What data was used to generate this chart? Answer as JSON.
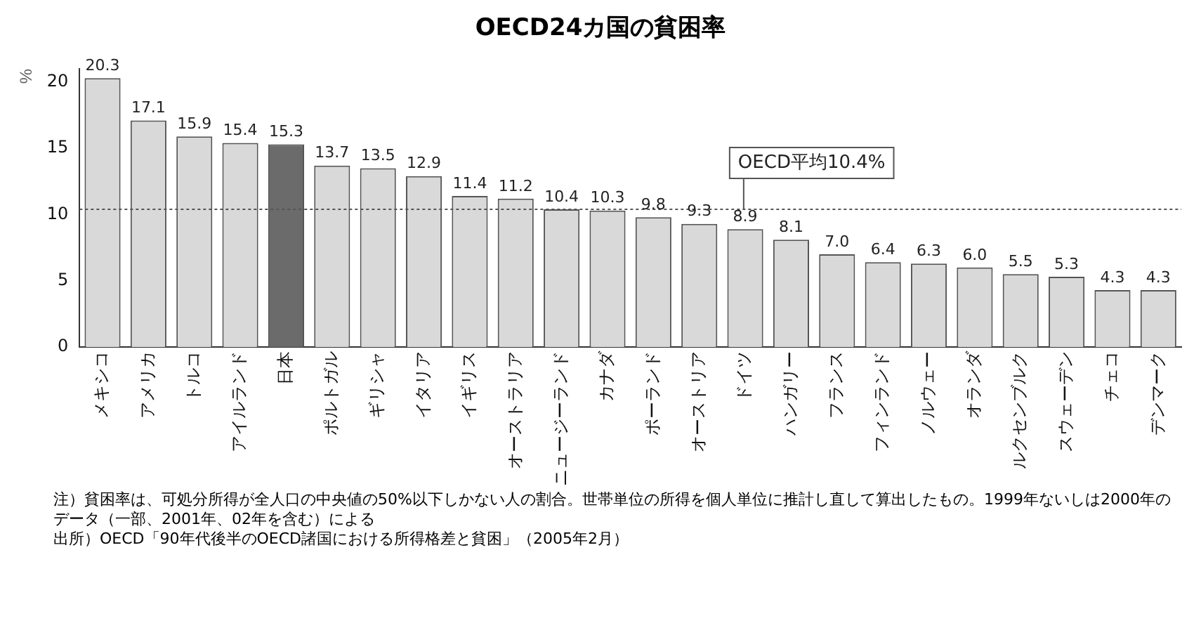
{
  "chart_data": {
    "type": "bar",
    "title": "OECD24カ国の貧困率",
    "ylabel": "%",
    "categories": [
      "メキシコ",
      "アメリカ",
      "トルコ",
      "アイルランド",
      "日本",
      "ポルトガル",
      "ギリシャ",
      "イタリア",
      "イギリス",
      "オーストラリア",
      "ニュージーランド",
      "カナダ",
      "ポーランド",
      "オーストリア",
      "ドイツ",
      "ハンガリー",
      "フランス",
      "フィンランド",
      "ノルウェー",
      "オランダ",
      "ルクセンブルク",
      "スウェーデン",
      "チェコ",
      "デンマーク"
    ],
    "values": [
      20.3,
      17.1,
      15.9,
      15.4,
      15.3,
      13.7,
      13.5,
      12.9,
      11.4,
      11.2,
      10.4,
      10.3,
      9.8,
      9.3,
      8.9,
      8.1,
      7.0,
      6.4,
      6.3,
      6.0,
      5.5,
      5.3,
      4.3,
      4.3
    ],
    "value_labels": [
      "20.3",
      "17.1",
      "15.9",
      "15.4",
      "15.3",
      "13.7",
      "13.5",
      "12.9",
      "11.4",
      "11.2",
      "10.4",
      "10.3",
      "9.8",
      "9.3",
      "8.9",
      "8.1",
      "7.0",
      "6.4",
      "6.3",
      "6.0",
      "5.5",
      "5.3",
      "4.3",
      "4.3"
    ],
    "colors": [
      "#d9d9d9",
      "#d9d9d9",
      "#d9d9d9",
      "#d9d9d9",
      "#6b6b6b",
      "#d9d9d9",
      "#d9d9d9",
      "#d9d9d9",
      "#d9d9d9",
      "#d9d9d9",
      "#d9d9d9",
      "#d9d9d9",
      "#d9d9d9",
      "#d9d9d9",
      "#d9d9d9",
      "#d9d9d9",
      "#d9d9d9",
      "#d9d9d9",
      "#d9d9d9",
      "#d9d9d9",
      "#d9d9d9",
      "#d9d9d9",
      "#d9d9d9",
      "#d9d9d9"
    ],
    "ylim": [
      0,
      21
    ],
    "yticks": [
      0,
      5,
      10,
      15,
      20
    ],
    "ref_lines": [
      {
        "axis": "y",
        "value": 10.4,
        "label": "OECD平均10.4%",
        "line_style": "dotted",
        "color": "#555555"
      }
    ],
    "annotations": [
      "注）貧困率は、可処分所得が全人口の中央値の50%以下しかない人の割合。世帯単位の所得を個人単位に推計し直して算出したもの。1999年ないしは2000年のデータ（一部、2001年、02年を含む）による",
      "出所）OECD「90年代後半のOECD諸国における所得格差と貧困」（2005年2月）"
    ]
  }
}
